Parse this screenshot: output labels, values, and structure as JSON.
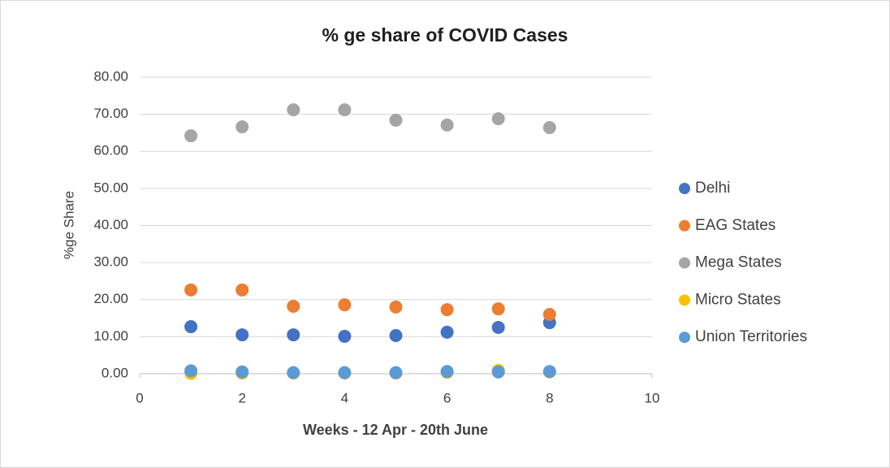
{
  "chart_data": {
    "type": "scatter",
    "title": "% ge share of COVID Cases",
    "xlabel": "Weeks - 12 Apr - 20th June",
    "ylabel": "%ge Share",
    "x": [
      1,
      2,
      3,
      4,
      5,
      6,
      7,
      8
    ],
    "series": [
      {
        "name": "Delhi",
        "color": "#4472c4",
        "values": [
          12.7,
          10.5,
          10.5,
          10.1,
          10.3,
          11.2,
          12.5,
          13.8
        ]
      },
      {
        "name": "EAG States",
        "color": "#ed7d31",
        "values": [
          22.6,
          22.6,
          18.2,
          18.6,
          18.0,
          17.3,
          17.5,
          16.0
        ]
      },
      {
        "name": "Mega States",
        "color": "#a5a5a5",
        "values": [
          64.2,
          66.6,
          71.2,
          71.2,
          68.4,
          67.1,
          68.8,
          66.4
        ]
      },
      {
        "name": "Micro States",
        "color": "#ffc000",
        "values": [
          0.1,
          0.2,
          0.2,
          0.2,
          0.2,
          0.4,
          0.9,
          0.5
        ]
      },
      {
        "name": "Union Territories",
        "color": "#5b9bd5",
        "values": [
          0.8,
          0.5,
          0.3,
          0.3,
          0.3,
          0.6,
          0.5,
          0.6
        ]
      }
    ],
    "xlim": [
      0,
      10
    ],
    "xticks": [
      0,
      2,
      4,
      6,
      8,
      10
    ],
    "ylim": [
      0,
      80
    ],
    "yticks": [
      {
        "value": 0,
        "label": "0.00"
      },
      {
        "value": 10,
        "label": "10.00"
      },
      {
        "value": 20,
        "label": "20.00"
      },
      {
        "value": 30,
        "label": "30.00"
      },
      {
        "value": 40,
        "label": "40.00"
      },
      {
        "value": 50,
        "label": "50.00"
      },
      {
        "value": 60,
        "label": "60.00"
      },
      {
        "value": 70,
        "label": "70.00"
      },
      {
        "value": 80,
        "label": "80.00"
      }
    ],
    "grid": true,
    "legend": "right"
  }
}
